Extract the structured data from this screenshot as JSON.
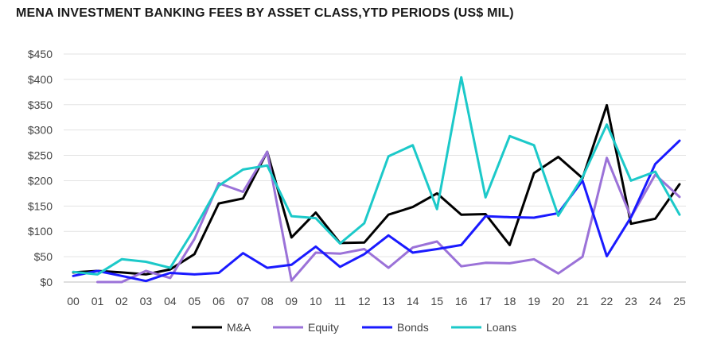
{
  "chart_data": {
    "type": "line",
    "title": "MENA INVESTMENT BANKING FEES BY ASSET CLASS,YTD PERIODS (US$ MIL)",
    "xlabel": "",
    "ylabel": "",
    "categories": [
      "00",
      "01",
      "02",
      "03",
      "04",
      "05",
      "06",
      "07",
      "08",
      "09",
      "10",
      "11",
      "12",
      "13",
      "14",
      "15",
      "16",
      "17",
      "18",
      "19",
      "20",
      "21",
      "22",
      "23",
      "24",
      "25"
    ],
    "ylim": [
      0,
      450
    ],
    "yticks": [
      "$0",
      "$50",
      "$100",
      "$150",
      "$200",
      "$250",
      "$300",
      "$350",
      "$400",
      "$450"
    ],
    "grid": "horizontal",
    "legend_position": "bottom",
    "series": [
      {
        "name": "M&A",
        "color": "#000000",
        "values": [
          19,
          22,
          19,
          15,
          25,
          55,
          155,
          165,
          257,
          88,
          137,
          77,
          78,
          133,
          148,
          175,
          133,
          134,
          73,
          215,
          247,
          205,
          349,
          115,
          125,
          193
        ]
      },
      {
        "name": "Equity",
        "color": "#9b72d8",
        "values": [
          null,
          0,
          0,
          22,
          8,
          85,
          195,
          178,
          257,
          3,
          58,
          56,
          65,
          28,
          68,
          80,
          31,
          38,
          37,
          45,
          17,
          50,
          245,
          128,
          212,
          168
        ]
      },
      {
        "name": "Bonds",
        "color": "#1a1aff",
        "values": [
          12,
          22,
          12,
          2,
          18,
          15,
          18,
          57,
          28,
          34,
          70,
          30,
          55,
          92,
          58,
          65,
          73,
          130,
          128,
          127,
          136,
          200,
          51,
          128,
          233,
          279
        ]
      },
      {
        "name": "Loans",
        "color": "#1cc9c9",
        "values": [
          20,
          15,
          45,
          40,
          28,
          105,
          190,
          222,
          230,
          130,
          126,
          76,
          116,
          248,
          270,
          144,
          404,
          167,
          288,
          270,
          131,
          207,
          311,
          200,
          218,
          133
        ]
      }
    ]
  }
}
